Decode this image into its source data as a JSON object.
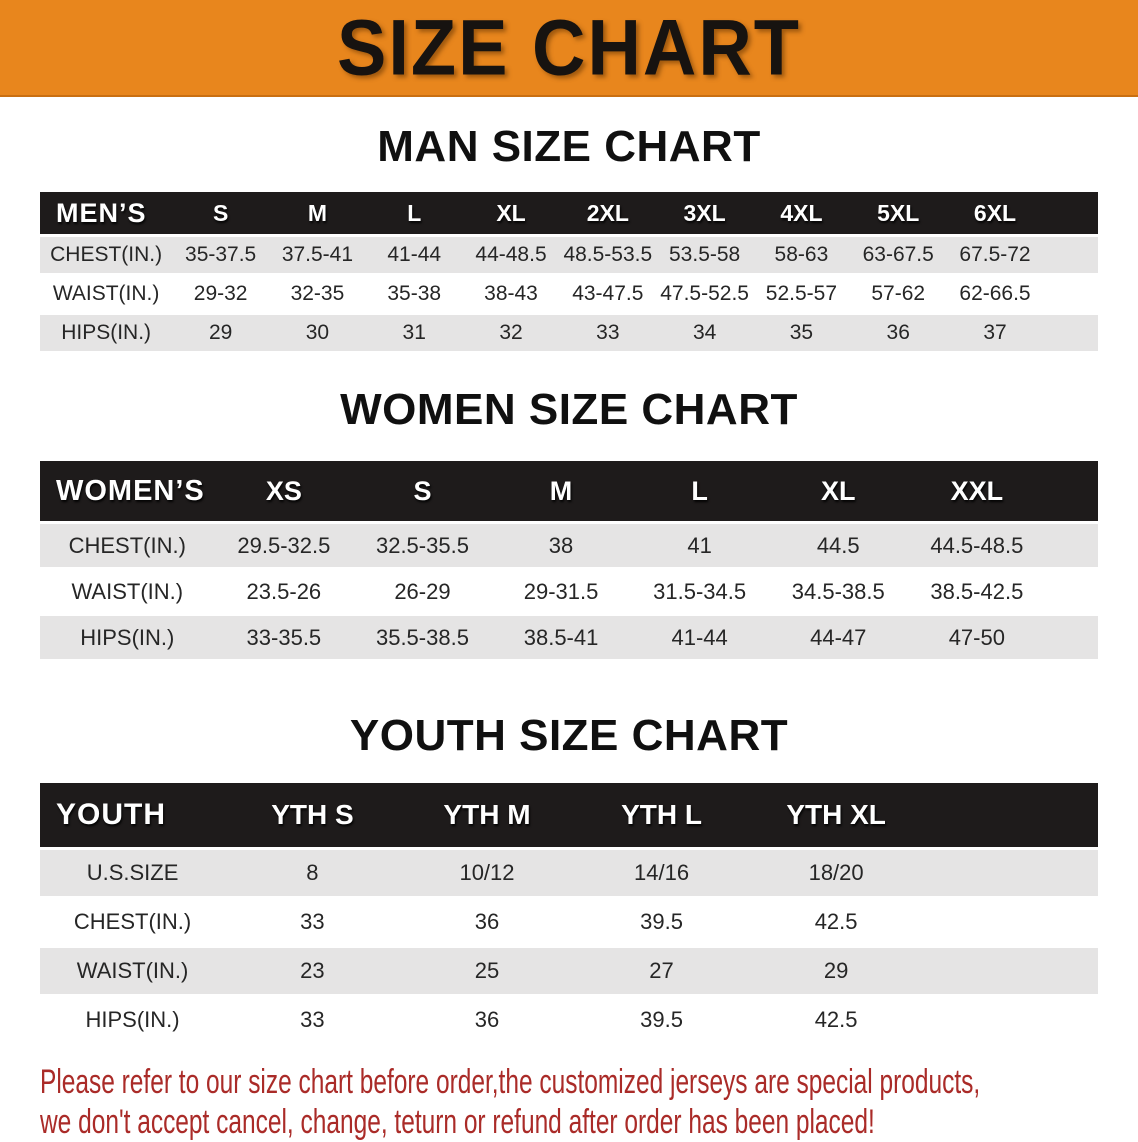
{
  "banner": {
    "title": "SIZE CHART"
  },
  "colors": {
    "banner_bg": "#e8861d",
    "table_header_bg": "#1e1b1b",
    "row_alt_bg": "#e5e4e4",
    "note_color": "#aa2b28"
  },
  "men": {
    "heading": "MAN SIZE CHART",
    "label": "MEN’S",
    "columns": [
      "S",
      "M",
      "L",
      "XL",
      "2XL",
      "3XL",
      "4XL",
      "5XL",
      "6XL"
    ],
    "rows": [
      {
        "label": "CHEST(IN.)",
        "values": [
          "35-37.5",
          "37.5-41",
          "41-44",
          "44-48.5",
          "48.5-53.5",
          "53.5-58",
          "58-63",
          "63-67.5",
          "67.5-72"
        ]
      },
      {
        "label": "WAIST(IN.)",
        "values": [
          "29-32",
          "32-35",
          "35-38",
          "38-43",
          "43-47.5",
          "47.5-52.5",
          "52.5-57",
          "57-62",
          "62-66.5"
        ]
      },
      {
        "label": "HIPS(IN.)",
        "values": [
          "29",
          "30",
          "31",
          "32",
          "33",
          "34",
          "35",
          "36",
          "37"
        ]
      }
    ]
  },
  "women": {
    "heading": "WOMEN SIZE CHART",
    "label": "WOMEN’S",
    "columns": [
      "XS",
      "S",
      "M",
      "L",
      "XL",
      "XXL"
    ],
    "rows": [
      {
        "label": "CHEST(IN.)",
        "values": [
          "29.5-32.5",
          "32.5-35.5",
          "38",
          "41",
          "44.5",
          "44.5-48.5"
        ]
      },
      {
        "label": "WAIST(IN.)",
        "values": [
          "23.5-26",
          "26-29",
          "29-31.5",
          "31.5-34.5",
          "34.5-38.5",
          "38.5-42.5"
        ]
      },
      {
        "label": "HIPS(IN.)",
        "values": [
          "33-35.5",
          "35.5-38.5",
          "38.5-41",
          "41-44",
          "44-47",
          "47-50"
        ]
      }
    ]
  },
  "youth": {
    "heading": "YOUTH SIZE CHART",
    "label": "YOUTH",
    "columns": [
      "YTH S",
      "YTH M",
      "YTH L",
      "YTH XL"
    ],
    "rows": [
      {
        "label": "U.S.SIZE",
        "values": [
          "8",
          "10/12",
          "14/16",
          "18/20"
        ]
      },
      {
        "label": "CHEST(IN.)",
        "values": [
          "33",
          "36",
          "39.5",
          "42.5"
        ]
      },
      {
        "label": "WAIST(IN.)",
        "values": [
          "23",
          "25",
          "27",
          "29"
        ]
      },
      {
        "label": "HIPS(IN.)",
        "values": [
          "33",
          "36",
          "39.5",
          "42.5"
        ]
      }
    ]
  },
  "note": {
    "line1": "Please refer to our size chart before order,the customized jerseys are special products,",
    "line2": "we don't accept cancel, change, teturn or refund after order has been placed!"
  }
}
